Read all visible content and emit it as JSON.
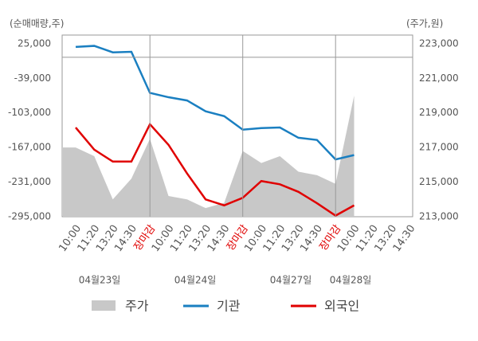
{
  "chart_data": {
    "type": "line",
    "y_label": "(순매매량,주)",
    "y2_label": "(주가,원)",
    "categories": [
      "10:00",
      "11:20",
      "13:20",
      "14:30",
      "장마감",
      "10:00",
      "11:20",
      "13:20",
      "14:30",
      "장마감",
      "10:00",
      "11:20",
      "13:20",
      "14:30",
      "장마감",
      "10:00",
      "11:20",
      "13:20",
      "14:30"
    ],
    "category_colors": [
      "#555",
      "#555",
      "#555",
      "#555",
      "#e00000",
      "#555",
      "#555",
      "#555",
      "#555",
      "#e00000",
      "#555",
      "#555",
      "#555",
      "#555",
      "#e00000",
      "#555",
      "#555",
      "#555",
      "#555"
    ],
    "dates": [
      "04월23일",
      "04월24일",
      "04월27일",
      "04월28일"
    ],
    "ylim": [
      -295000,
      41000
    ],
    "yticks": [
      {
        "value": 25000,
        "label": "25,000"
      },
      {
        "value": -39000,
        "label": "-39,000"
      },
      {
        "value": -103000,
        "label": "-103,000"
      },
      {
        "value": -167000,
        "label": "-167,000"
      },
      {
        "value": -231000,
        "label": "-231,000"
      },
      {
        "value": -295000,
        "label": "-295,000"
      }
    ],
    "y2lim": [
      213000,
      223500
    ],
    "y2ticks": [
      {
        "value": 223000,
        "label": "223,000"
      },
      {
        "value": 221000,
        "label": "221,000"
      },
      {
        "value": 219000,
        "label": "219,000"
      },
      {
        "value": 217000,
        "label": "217,000"
      },
      {
        "value": 215000,
        "label": "215,000"
      },
      {
        "value": 213000,
        "label": "213,000"
      }
    ],
    "zero_line": true,
    "series": [
      {
        "name": "주가",
        "type": "area",
        "axis": "y2",
        "color": "#c8c8c8",
        "values": [
          217000,
          216500,
          214000,
          215200,
          217500,
          214200,
          214000,
          213500,
          213800,
          216800,
          216100,
          216500,
          215600,
          215400,
          214900,
          220000,
          null,
          null,
          null
        ]
      },
      {
        "name": "기관",
        "color": "#1a7fc1",
        "values": [
          19000,
          21000,
          9000,
          10000,
          -66000,
          -74000,
          -80000,
          -100000,
          -109000,
          -134000,
          -131000,
          -130000,
          -149000,
          -153000,
          -189000,
          -181000,
          null,
          null,
          null
        ]
      },
      {
        "name": "외국인",
        "color": "#e00000",
        "values": [
          -130000,
          -171000,
          -193000,
          -193000,
          -124000,
          -162000,
          -215000,
          -263000,
          -274000,
          -260000,
          -229000,
          -235000,
          -249000,
          -270000,
          -293000,
          -274000,
          null,
          null,
          null
        ]
      }
    ]
  }
}
